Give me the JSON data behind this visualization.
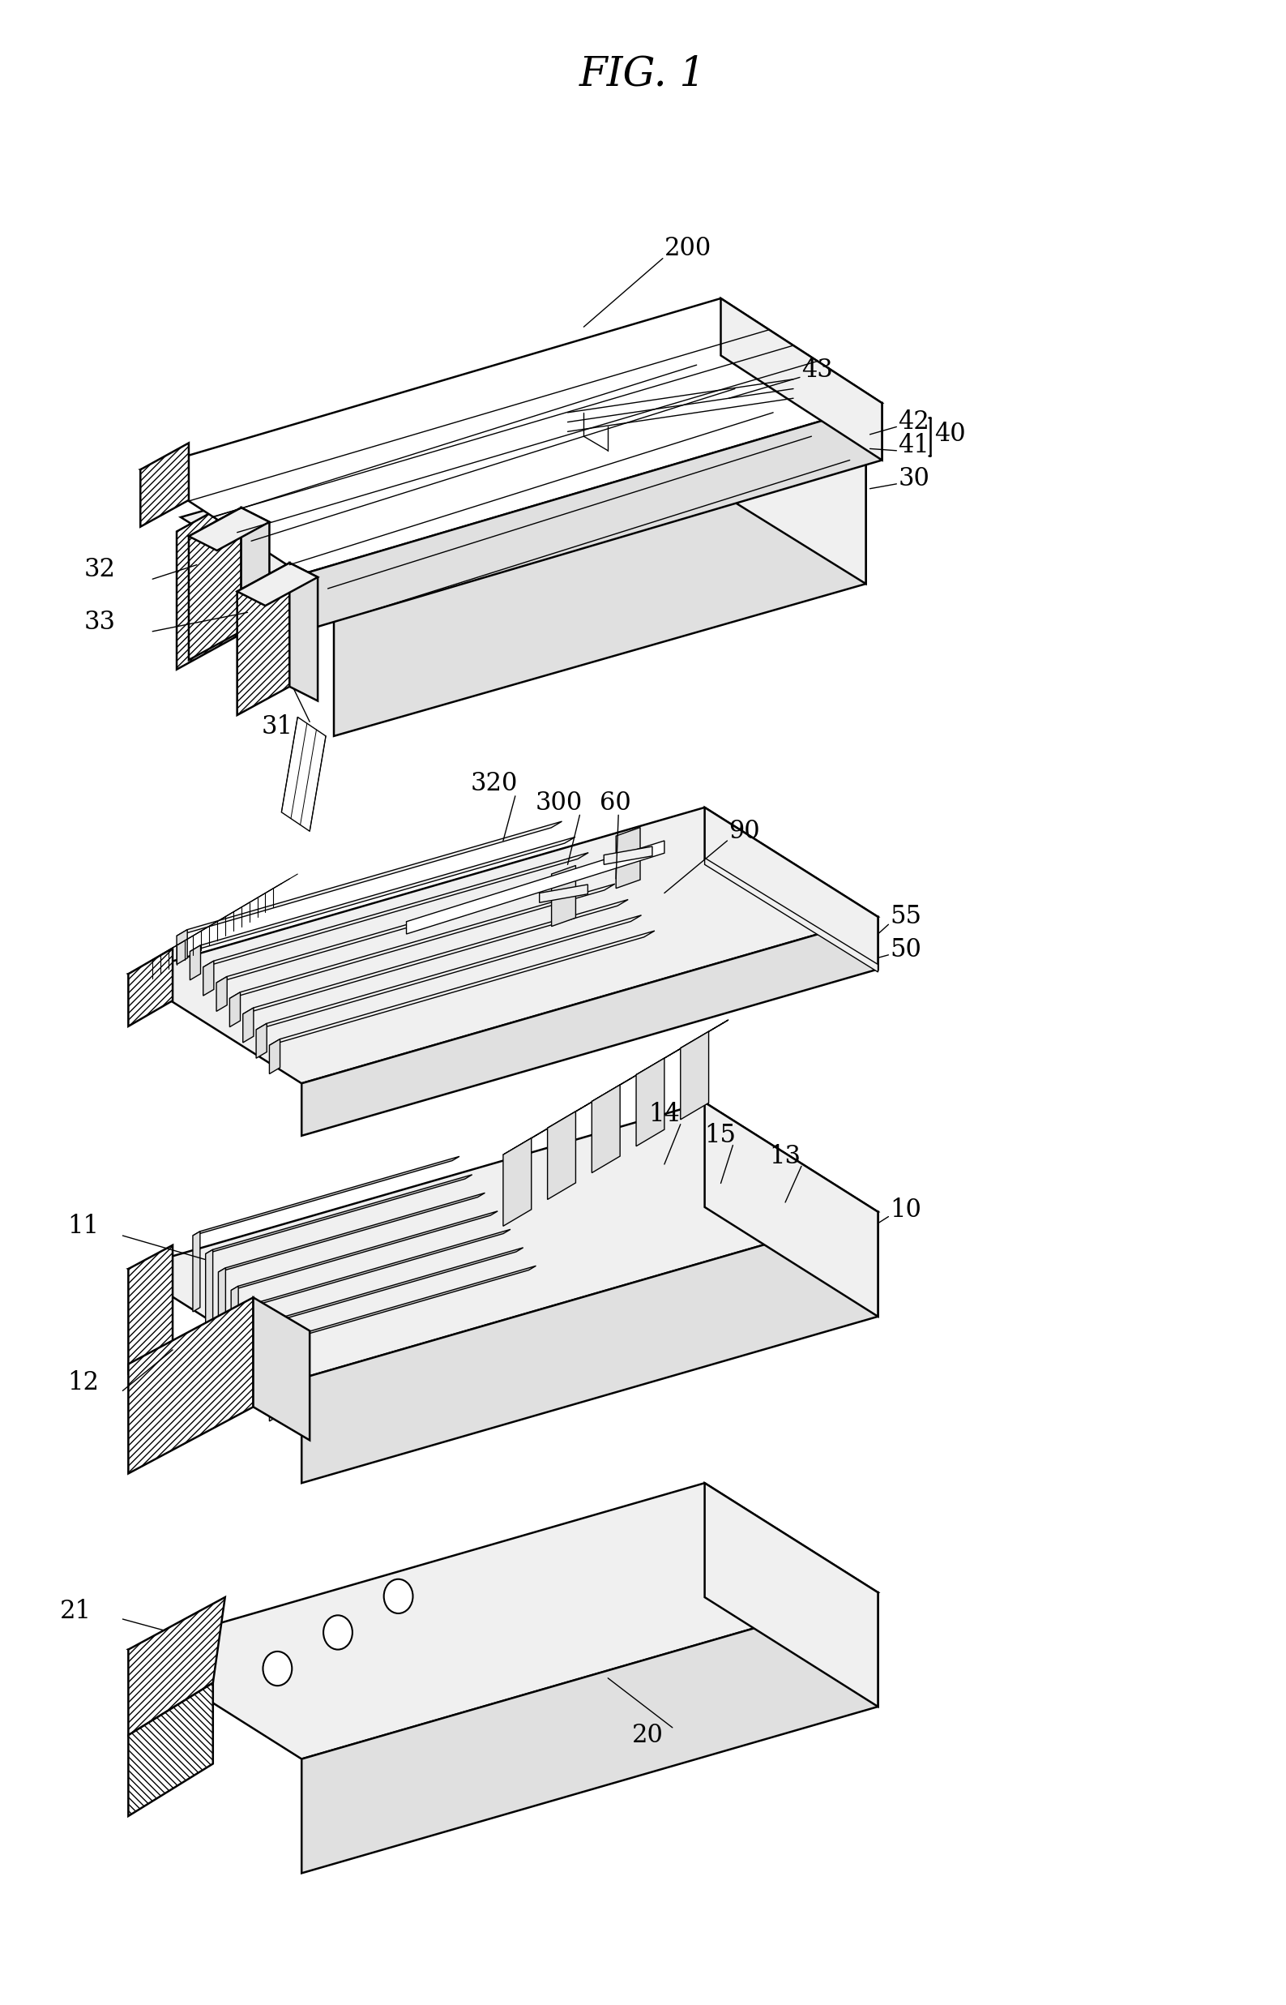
{
  "title": "FIG. 1",
  "title_fontsize": 32,
  "background_color": "#ffffff",
  "line_color": "#000000",
  "fig_width": 15.87,
  "fig_height": 24.73,
  "lw_main": 1.8,
  "lw_thin": 1.0,
  "lw_hatch": 1.2,
  "face_white": "#ffffff",
  "face_light": "#f0f0f0",
  "face_mid": "#e0e0e0",
  "face_dark": "#c8c8c8"
}
